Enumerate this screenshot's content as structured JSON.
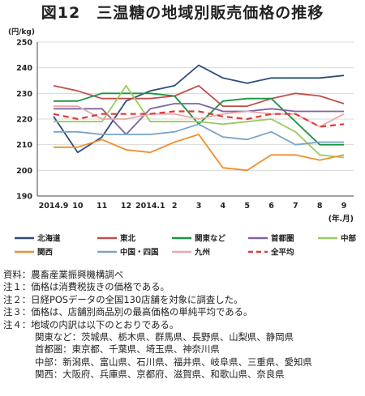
{
  "figure": {
    "title": "図12　三温糖の地域別販売価格の推移"
  },
  "chart_data": {
    "type": "line",
    "ylabel": "(円/kg)",
    "xlabel": "(年.月)",
    "ylim": [
      190,
      250
    ],
    "yticks": [
      190,
      200,
      210,
      220,
      230,
      240,
      250
    ],
    "grid": true,
    "legend_position": "bottom",
    "categories": [
      "2014.9",
      "10",
      "11",
      "12",
      "2014.1",
      "2",
      "3",
      "4",
      "5",
      "6",
      "7",
      "8",
      "9"
    ],
    "series": [
      {
        "name": "北海道",
        "color": "#2f4d7c",
        "dashed": false,
        "values": [
          221,
          207,
          213,
          227,
          231,
          233,
          241,
          236,
          234,
          236,
          236,
          236,
          237
        ]
      },
      {
        "name": "東北",
        "color": "#c0504d",
        "dashed": false,
        "values": [
          233,
          231,
          228,
          228,
          228,
          229,
          233,
          225,
          225,
          228,
          230,
          229,
          226
        ]
      },
      {
        "name": "関東など",
        "color": "#1a9641",
        "dashed": false,
        "values": [
          227,
          227,
          230,
          230,
          230,
          229,
          218,
          227,
          228,
          228,
          219,
          210,
          210
        ]
      },
      {
        "name": "首都圏",
        "color": "#8064a2",
        "dashed": false,
        "values": [
          224,
          224,
          224,
          214,
          224,
          226,
          226,
          223,
          223,
          224,
          223,
          223,
          223
        ]
      },
      {
        "name": "中部",
        "color": "#9bcb5f",
        "dashed": false,
        "values": [
          219,
          219,
          219,
          233,
          219,
          219,
          219,
          218,
          219,
          220,
          215,
          206,
          205
        ]
      },
      {
        "name": "関西",
        "color": "#f28e2b",
        "dashed": false,
        "values": [
          209,
          209,
          212,
          208,
          207,
          211,
          214,
          201,
          200,
          206,
          206,
          204,
          206
        ]
      },
      {
        "name": "中国・四国",
        "color": "#7ba3c9",
        "dashed": false,
        "values": [
          215,
          215,
          214,
          214,
          214,
          215,
          218,
          213,
          212,
          215,
          210,
          211,
          211
        ]
      },
      {
        "name": "九州",
        "color": "#e6a9a9",
        "dashed": false,
        "values": [
          225,
          225,
          220,
          220,
          222,
          222,
          220,
          222,
          223,
          222,
          222,
          217,
          222
        ]
      },
      {
        "name": "全平均",
        "color": "#e03a3a",
        "dashed": true,
        "values": [
          222,
          220,
          222,
          222,
          222,
          223,
          223,
          221,
          220,
          222,
          222,
          217,
          218
        ]
      }
    ]
  },
  "notes": {
    "source": "資料：農畜産業振興機構調べ",
    "note1": "注１：価格は消費税抜きの価格である。",
    "note2": "注２：日経POSデータの全国130店舗を対象に調査した。",
    "note3": "注３：価格は、店舗別商品別の最高価格の単純平均である。",
    "note4": "注４：地域の内訳は以下のとおりである。",
    "kanto": "関東など：茨城県、栃木県、群馬県、長野県、山梨県、静岡県",
    "shutoken": "首都圏：東京都、千葉県、埼玉県、神奈川県",
    "chubu": "中部：新潟県、富山県、石川県、福井県、岐阜県、三重県、愛知県",
    "kansai": "関西：大阪府、兵庫県、京都府、滋賀県、和歌山県、奈良県"
  }
}
